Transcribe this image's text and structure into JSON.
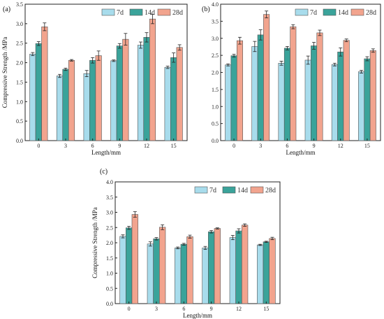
{
  "colors": {
    "7d": "#a8dcec",
    "14d": "#3aa39a",
    "28d": "#f2a48e",
    "frame": "#222222"
  },
  "chart_data": [
    {
      "type": "bar",
      "panel": "(a)",
      "categories": [
        "0",
        "3",
        "6",
        "9",
        "12",
        "15"
      ],
      "series": [
        {
          "name": "7d",
          "values": [
            2.22,
            1.66,
            1.72,
            2.05,
            2.45,
            1.88
          ],
          "errors": [
            0.04,
            0.04,
            0.08,
            0.02,
            0.08,
            0.03
          ]
        },
        {
          "name": "14d",
          "values": [
            2.49,
            1.83,
            2.06,
            2.43,
            2.65,
            2.13
          ],
          "errors": [
            0.05,
            0.03,
            0.07,
            0.06,
            0.12,
            0.12
          ]
        },
        {
          "name": "28d",
          "values": [
            2.92,
            2.06,
            2.18,
            2.6,
            3.12,
            2.39
          ],
          "errors": [
            0.1,
            0.02,
            0.12,
            0.15,
            0.12,
            0.07
          ]
        }
      ],
      "xlabel": "Length/mm",
      "ylabel": "Compressive Strength /MPa",
      "ylim": [
        0,
        3.5
      ],
      "yticks": [
        "0.0",
        "0.5",
        "1.0",
        "1.5",
        "2.0",
        "2.5",
        "3.0",
        "3.5"
      ],
      "legend_position": "top-right"
    },
    {
      "type": "bar",
      "panel": "(b)",
      "categories": [
        "0",
        "3",
        "6",
        "9",
        "12",
        "15"
      ],
      "series": [
        {
          "name": "7d",
          "values": [
            2.22,
            2.76,
            2.27,
            2.36,
            2.23,
            2.02
          ],
          "errors": [
            0.03,
            0.15,
            0.06,
            0.12,
            0.04,
            0.04
          ]
        },
        {
          "name": "14d",
          "values": [
            2.49,
            3.1,
            2.71,
            2.78,
            2.6,
            2.4
          ],
          "errors": [
            0.04,
            0.15,
            0.05,
            0.1,
            0.12,
            0.06
          ]
        },
        {
          "name": "28d",
          "values": [
            2.93,
            3.7,
            3.34,
            3.16,
            2.94,
            2.64
          ],
          "errors": [
            0.1,
            0.1,
            0.06,
            0.08,
            0.04,
            0.05
          ]
        }
      ],
      "xlabel": "Length/mm",
      "ylabel": "",
      "ylim": [
        0,
        4.0
      ],
      "yticks": [
        "0.0",
        "0.5",
        "1.0",
        "1.5",
        "2.0",
        "2.5",
        "3.0",
        "3.5",
        "4.0"
      ],
      "legend_position": "top-right"
    },
    {
      "type": "bar",
      "panel": "(c)",
      "categories": [
        "0",
        "3",
        "6",
        "9",
        "12",
        "15"
      ],
      "series": [
        {
          "name": "7d",
          "values": [
            2.21,
            1.96,
            1.83,
            1.83,
            2.17,
            1.93
          ],
          "errors": [
            0.05,
            0.07,
            0.03,
            0.05,
            0.07,
            0.02
          ]
        },
        {
          "name": "14d",
          "values": [
            2.49,
            2.13,
            1.95,
            2.36,
            2.39,
            2.03
          ],
          "errors": [
            0.05,
            0.04,
            0.03,
            0.04,
            0.07,
            0.02
          ]
        },
        {
          "name": "28d",
          "values": [
            2.93,
            2.51,
            2.2,
            2.47,
            2.58,
            2.14
          ],
          "errors": [
            0.09,
            0.08,
            0.05,
            0.02,
            0.04,
            0.04
          ]
        }
      ],
      "xlabel": "Length/mm",
      "ylabel": "Compressive Strength /MPa",
      "ylim": [
        0,
        4.0
      ],
      "yticks": [
        "0.0",
        "0.5",
        "1.0",
        "1.5",
        "2.0",
        "2.5",
        "3.0",
        "3.5",
        "4.0"
      ],
      "legend_position": "top-right"
    }
  ]
}
